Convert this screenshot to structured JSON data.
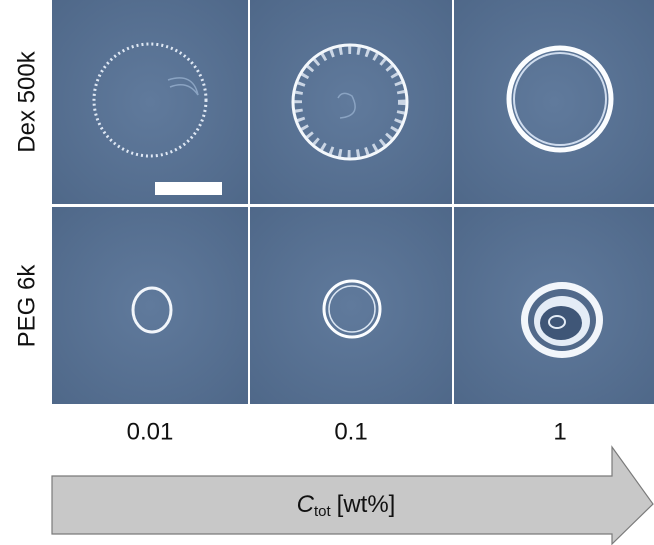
{
  "rows": [
    {
      "label": "Dex 500k"
    },
    {
      "label": "PEG 6k"
    }
  ],
  "columns": [
    "0.01",
    "0.1",
    "1"
  ],
  "axis": {
    "symbol": "C",
    "subscript": "tot",
    "unit": "[wt%]"
  }
}
